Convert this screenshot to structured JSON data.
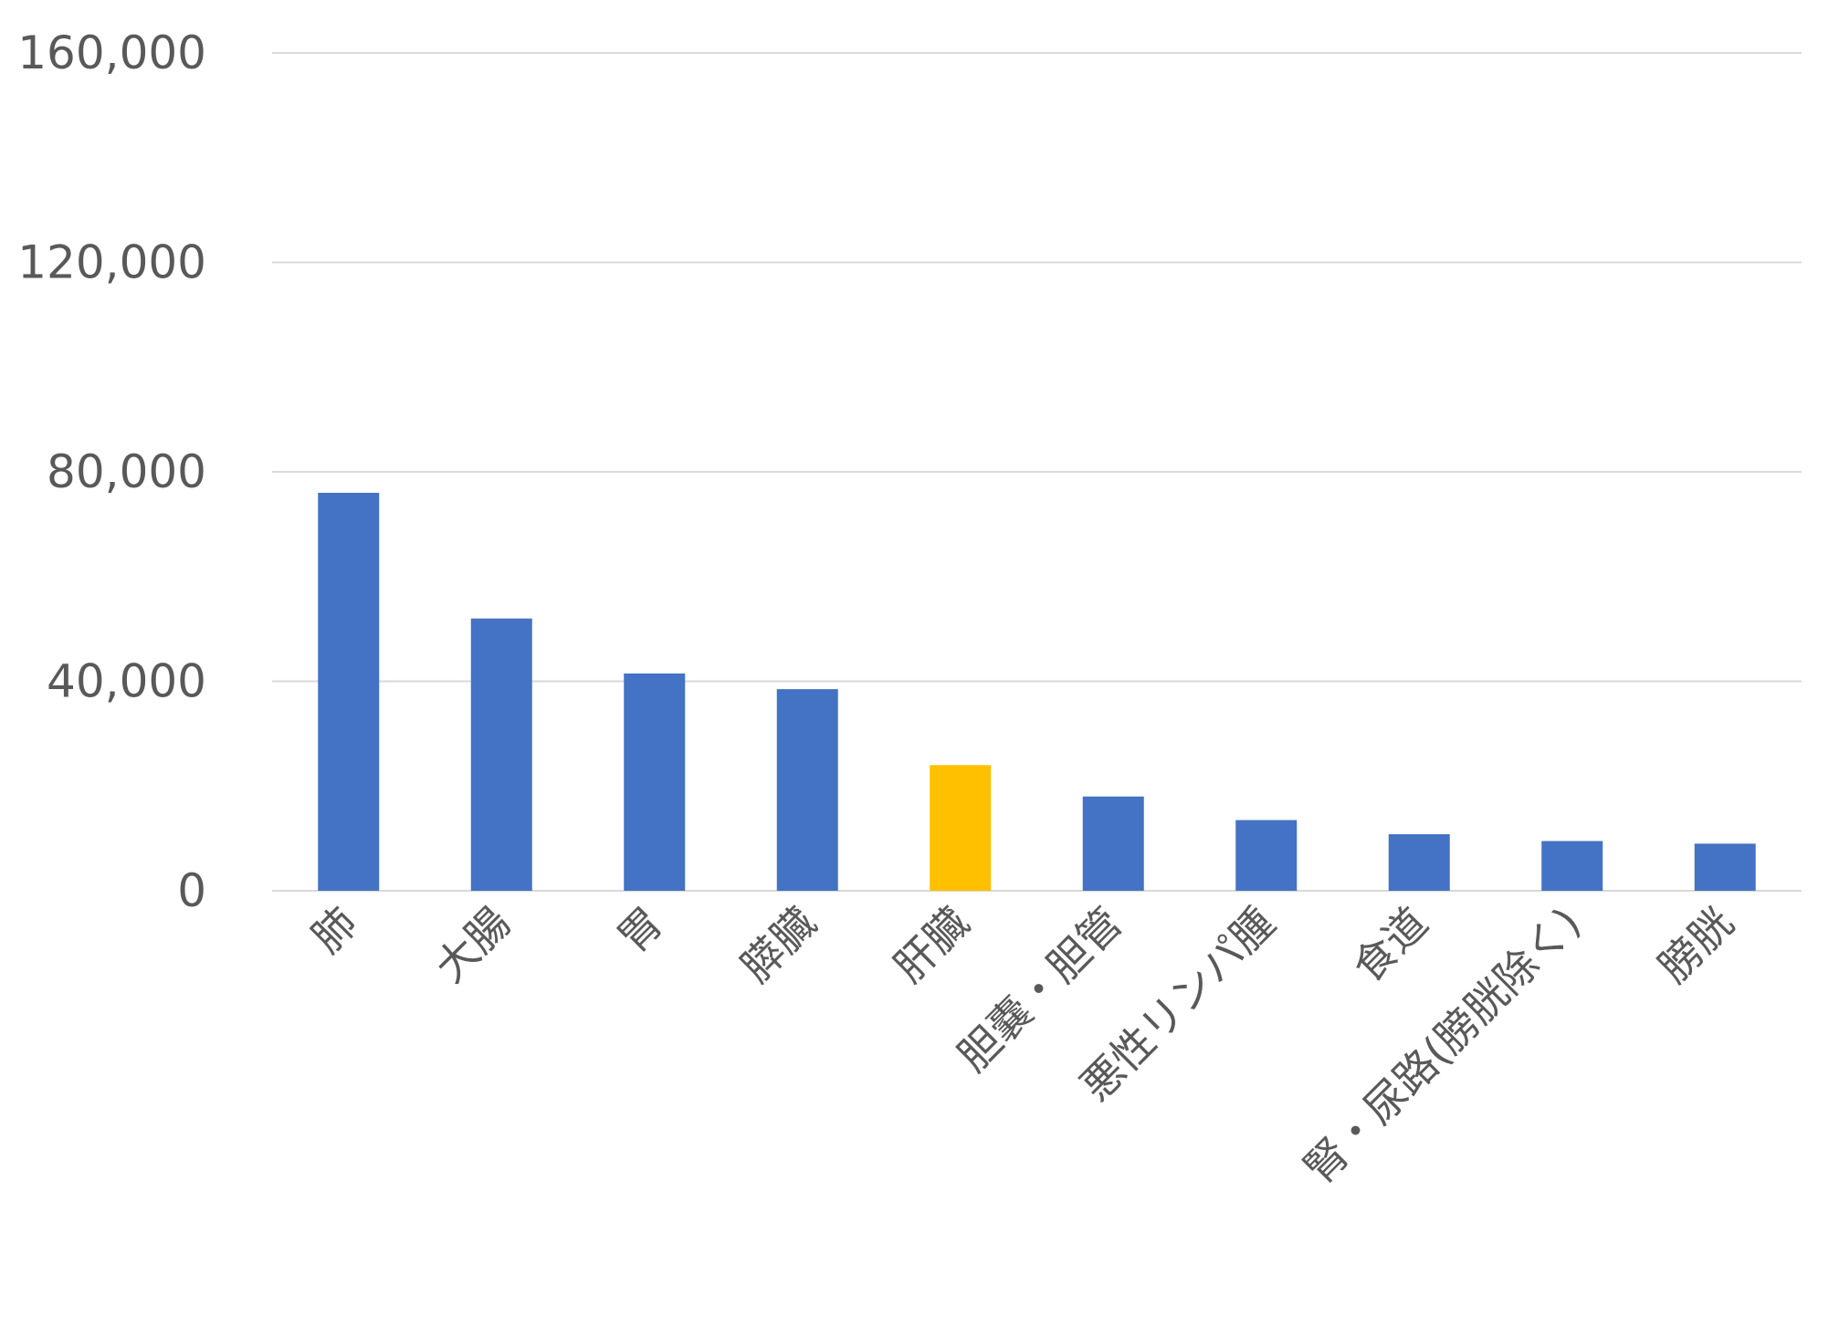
{
  "chart_data": {
    "type": "bar",
    "title": "",
    "xlabel": "",
    "ylabel": "",
    "categories": [
      "肺",
      "大腸",
      "胃",
      "膵臓",
      "肝臓",
      "胆嚢・胆管",
      "悪性リンパ腫",
      "食道",
      "腎・尿路(膀胱除く)",
      "膀胱"
    ],
    "values": [
      76000,
      52000,
      41500,
      38500,
      24000,
      18000,
      13500,
      10800,
      9500,
      9000
    ],
    "highlight_index": 4,
    "ylim": [
      0,
      160000
    ],
    "yticks": [
      0,
      40000,
      80000,
      120000,
      160000
    ],
    "ytick_labels": [
      "0",
      "40,000",
      "80,000",
      "120,000",
      "160,000"
    ],
    "grid": true,
    "legend": "none",
    "colors": {
      "bar": "#4472C4",
      "highlight": "#FFC000",
      "grid": "#D9D9D9",
      "text": "#595959"
    }
  }
}
